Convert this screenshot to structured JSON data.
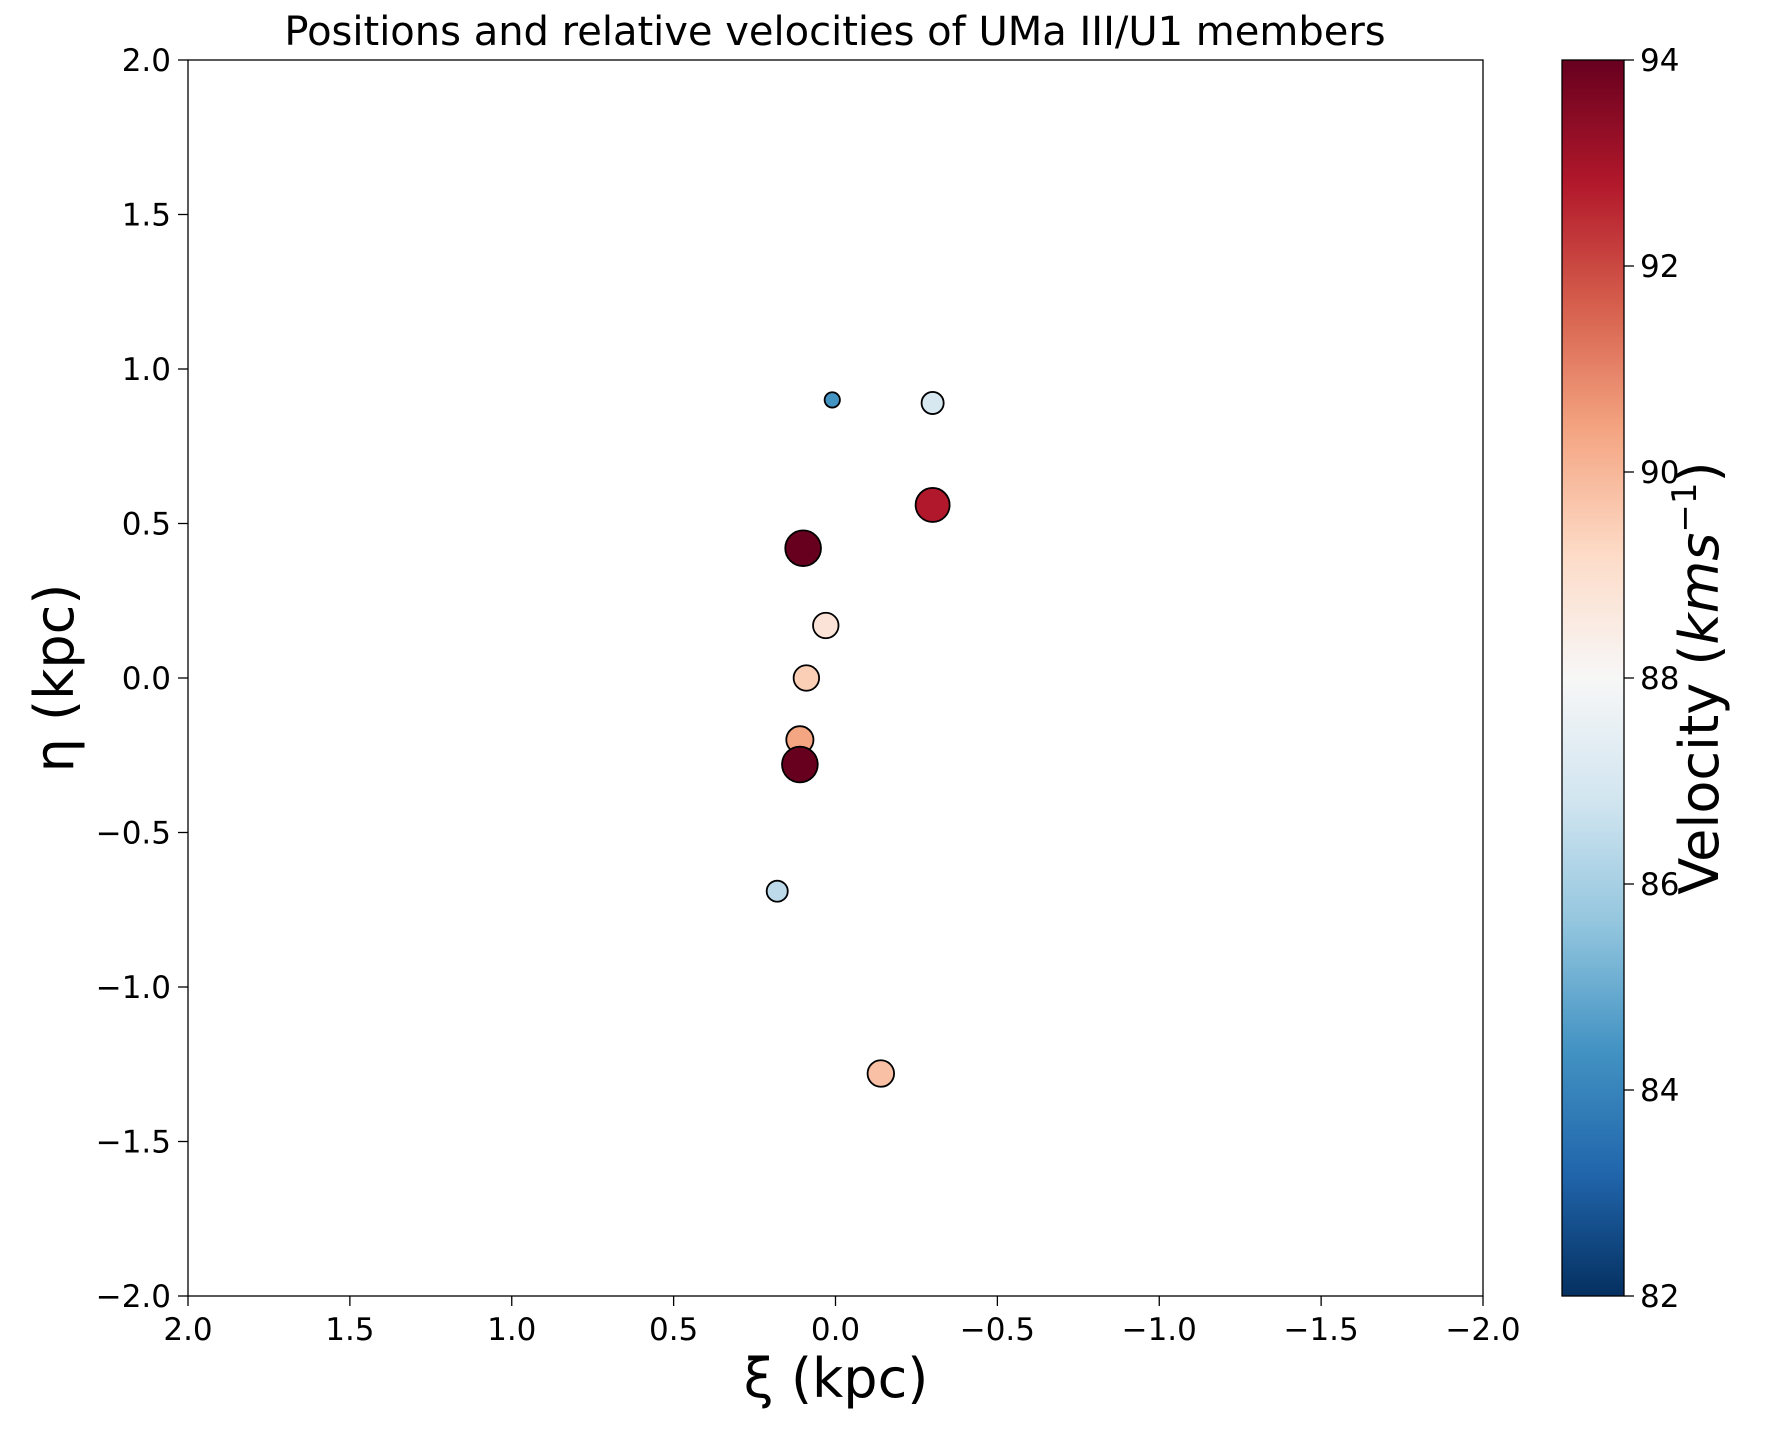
{
  "chart_data": {
    "type": "scatter",
    "title": "Positions and relative velocities of UMa III/U1 members",
    "xlabel": "ξ (kpc)",
    "ylabel": "η (kpc)",
    "xlim": [
      2.0,
      -2.0
    ],
    "ylim": [
      -2.0,
      2.0
    ],
    "xticks": [
      "2.0",
      "1.5",
      "1.0",
      "0.5",
      "0.0",
      "−0.5",
      "−1.0",
      "−1.5",
      "−2.0"
    ],
    "xtick_values": [
      2.0,
      1.5,
      1.0,
      0.5,
      0.0,
      -0.5,
      -1.0,
      -1.5,
      -2.0
    ],
    "yticks": [
      "2.0",
      "1.5",
      "1.0",
      "0.5",
      "0.0",
      "−0.5",
      "−1.0",
      "−1.5",
      "−2.0"
    ],
    "ytick_values": [
      2.0,
      1.5,
      1.0,
      0.5,
      0.0,
      -0.5,
      -1.0,
      -1.5,
      -2.0
    ],
    "grid": false,
    "colorbar": {
      "label": "Velocity",
      "unit_base": "kms",
      "unit_exp": "−1",
      "range": [
        82,
        94
      ],
      "ticks": [
        "94",
        "92",
        "90",
        "88",
        "86",
        "84",
        "82"
      ],
      "tick_values": [
        94,
        92,
        90,
        88,
        86,
        84,
        82
      ],
      "colormap": "RdBu_r",
      "stops": [
        "#053061",
        "#2166ac",
        "#4393c3",
        "#92c5de",
        "#d1e5f0",
        "#f7f7f7",
        "#fddbc7",
        "#f4a582",
        "#d6604d",
        "#b2182b",
        "#67001f"
      ]
    },
    "points": [
      {
        "xi": 0.01,
        "eta": 0.9,
        "velocity": 84.4,
        "size_rel": 0.45
      },
      {
        "xi": -0.3,
        "eta": 0.89,
        "velocity": 87.0,
        "size_rel": 0.65
      },
      {
        "xi": -0.3,
        "eta": 0.56,
        "velocity": 92.8,
        "size_rel": 1.0
      },
      {
        "xi": 0.1,
        "eta": 0.42,
        "velocity": 94.0,
        "size_rel": 1.05
      },
      {
        "xi": 0.03,
        "eta": 0.17,
        "velocity": 88.8,
        "size_rel": 0.75
      },
      {
        "xi": 0.09,
        "eta": 0.0,
        "velocity": 89.5,
        "size_rel": 0.75
      },
      {
        "xi": 0.11,
        "eta": -0.2,
        "velocity": 90.4,
        "size_rel": 0.8
      },
      {
        "xi": 0.11,
        "eta": -0.28,
        "velocity": 94.0,
        "size_rel": 1.05
      },
      {
        "xi": 0.18,
        "eta": -0.69,
        "velocity": 86.4,
        "size_rel": 0.62
      },
      {
        "xi": -0.14,
        "eta": -1.28,
        "velocity": 89.8,
        "size_rel": 0.78
      }
    ]
  }
}
